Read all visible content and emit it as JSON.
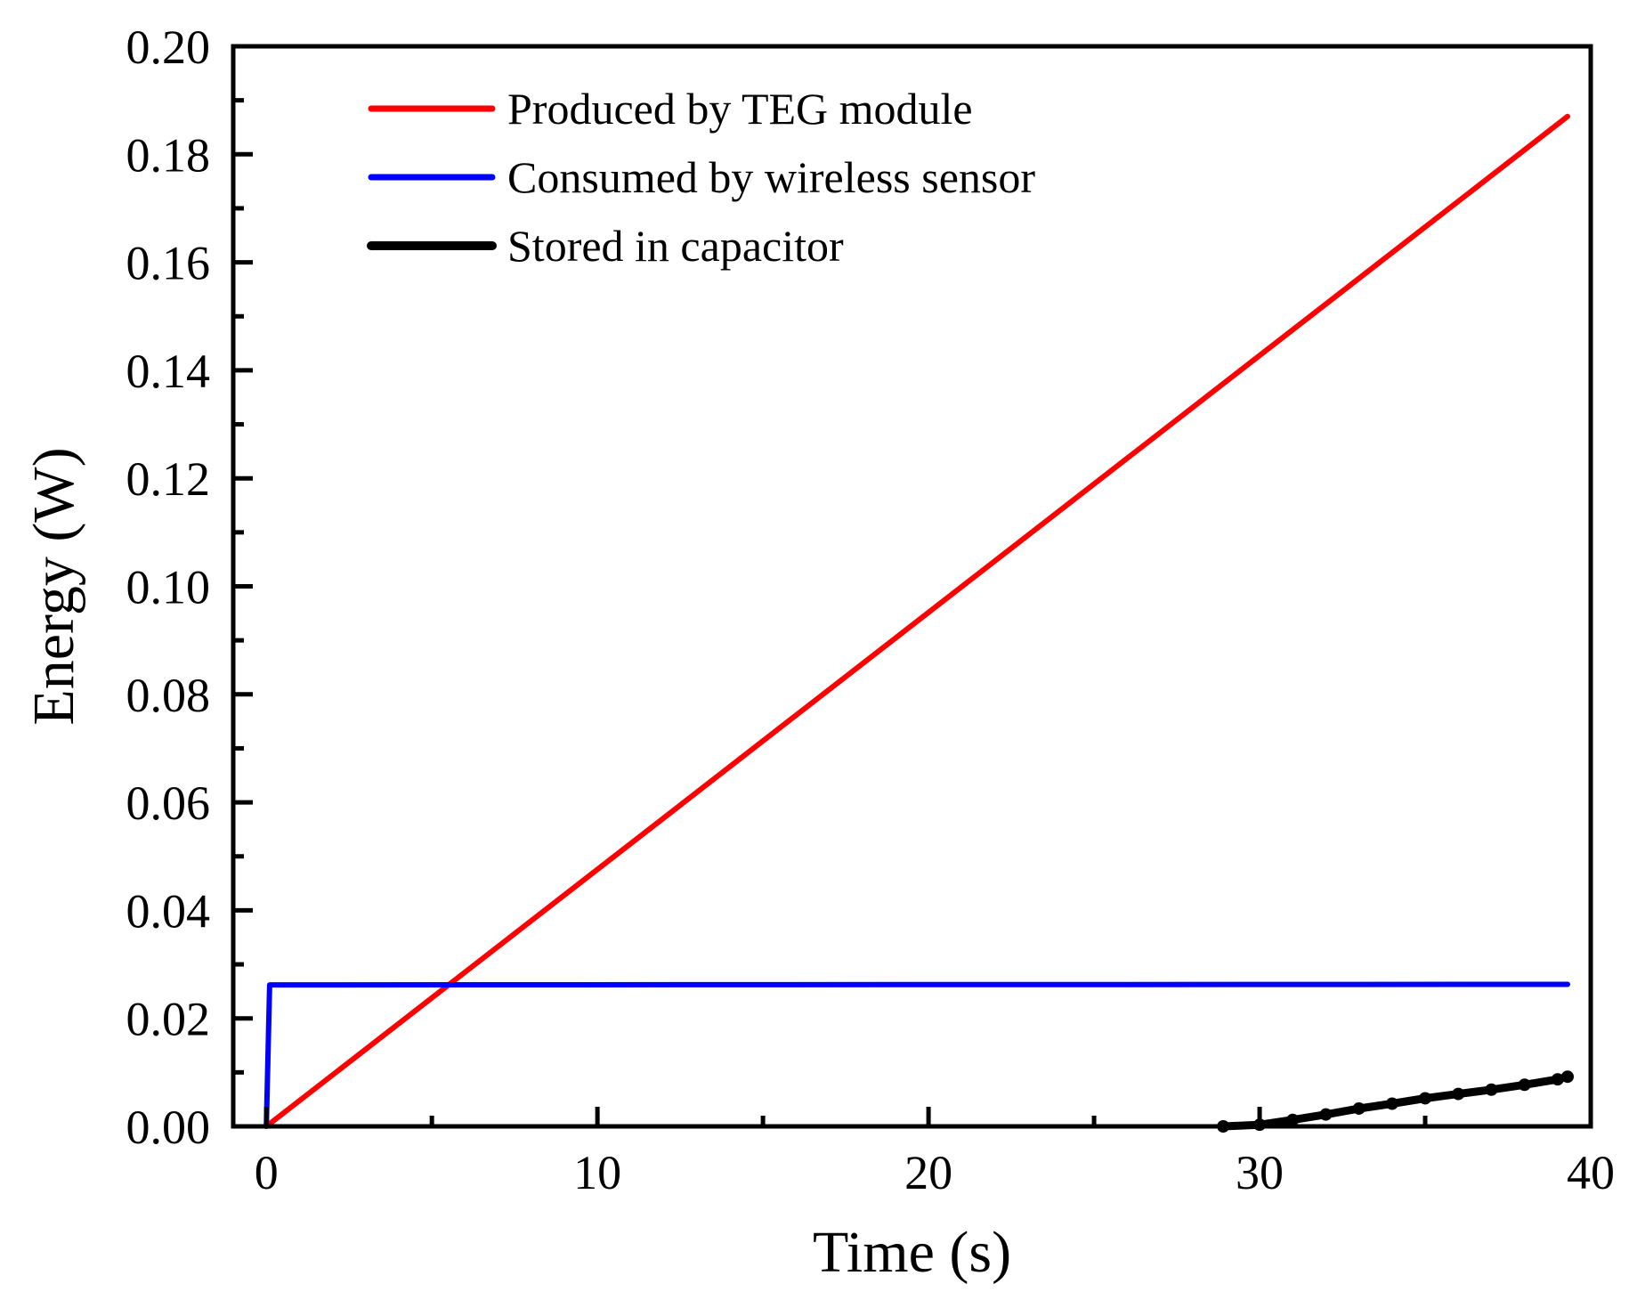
{
  "chart_data": {
    "type": "line",
    "title": "",
    "xlabel": "Time (s)",
    "ylabel": "Energy (W)",
    "xlim": [
      -1,
      40
    ],
    "ylim": [
      0,
      0.2
    ],
    "x_major_ticks": [
      0,
      10,
      20,
      30,
      40
    ],
    "x_minor_ticks": [
      5,
      15,
      25,
      35
    ],
    "x_tick_labels": [
      "0",
      "10",
      "20",
      "30",
      "40"
    ],
    "y_major_ticks": [
      0,
      0.02,
      0.04,
      0.06,
      0.08,
      0.1,
      0.12,
      0.14,
      0.16,
      0.18,
      0.2
    ],
    "y_tick_labels": [
      "0.00",
      "0.02",
      "0.04",
      "0.06",
      "0.08",
      "0.10",
      "0.12",
      "0.14",
      "0.16",
      "0.18",
      "0.20"
    ],
    "grid": false,
    "legend_position": "top-left",
    "series": [
      {
        "name": "Produced by TEG module",
        "color": "#ff0000",
        "x": [
          0,
          39.3
        ],
        "y": [
          0,
          0.187
        ]
      },
      {
        "name": "Consumed by wireless sensor",
        "color": "#0000ff",
        "x": [
          0,
          0.1,
          39.3
        ],
        "y": [
          0,
          0.0262,
          0.0263
        ]
      },
      {
        "name": "Stored in capacitor",
        "color": "#000000",
        "x": [
          28.9,
          30,
          31,
          32,
          33,
          34,
          35,
          36,
          37,
          38,
          39,
          39.3
        ],
        "y": [
          0,
          0.0003,
          0.0012,
          0.0022,
          0.0033,
          0.0042,
          0.0052,
          0.006,
          0.0068,
          0.0077,
          0.0087,
          0.0092
        ]
      }
    ]
  }
}
